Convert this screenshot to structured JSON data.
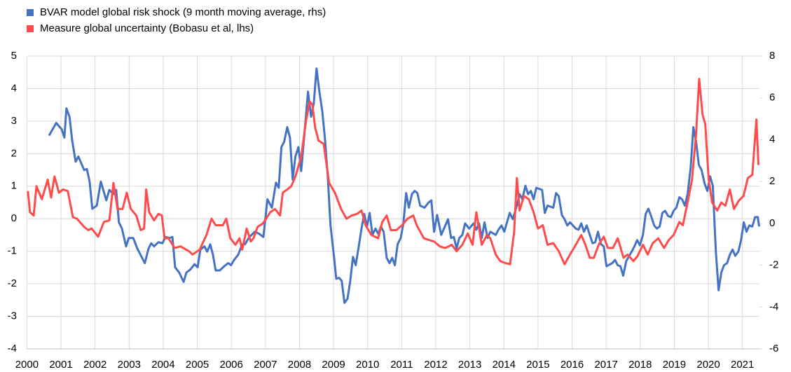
{
  "chart_data": {
    "type": "line",
    "legend": "top-left",
    "grid": true,
    "xlim": [
      2000,
      2021.5
    ],
    "xticks": [
      2000,
      2001,
      2002,
      2003,
      2004,
      2005,
      2006,
      2007,
      2008,
      2009,
      2010,
      2011,
      2012,
      2013,
      2014,
      2015,
      2016,
      2017,
      2018,
      2019,
      2020,
      2021
    ],
    "ylim": [
      -4,
      5
    ],
    "yticks": [
      -4,
      -3,
      -2,
      -1,
      0,
      1,
      2,
      3,
      4,
      5
    ],
    "y2lim": [
      -6,
      8
    ],
    "y2ticks": [
      -6,
      -4,
      -2,
      0,
      2,
      4,
      6,
      8
    ],
    "series": [
      {
        "name": "BVAR model global risk shock (9 month moving average, rhs)",
        "color": "#4472c4",
        "axis": "y2",
        "x": [
          2000.65,
          2000.86,
          2001.02,
          2001.1,
          2001.16,
          2001.25,
          2001.33,
          2001.43,
          2001.51,
          2001.68,
          2001.76,
          2001.84,
          2001.92,
          2002.05,
          2002.17,
          2002.33,
          2002.42,
          2002.54,
          2002.62,
          2002.7,
          2002.79,
          2002.91,
          2002.99,
          2003.12,
          2003.24,
          2003.46,
          2003.57,
          2003.65,
          2003.73,
          2003.86,
          2003.98,
          2004.06,
          2004.18,
          2004.27,
          2004.35,
          2004.47,
          2004.6,
          2004.68,
          2004.8,
          2004.92,
          2005.01,
          2005.09,
          2005.21,
          2005.29,
          2005.38,
          2005.46,
          2005.54,
          2005.66,
          2005.79,
          2005.91,
          2005.99,
          2006.08,
          2006.2,
          2006.32,
          2006.4,
          2006.53,
          2006.69,
          2006.82,
          2006.94,
          2007.06,
          2007.19,
          2007.31,
          2007.39,
          2007.47,
          2007.55,
          2007.64,
          2007.72,
          2007.8,
          2007.88,
          2007.97,
          2008.05,
          2008.17,
          2008.25,
          2008.34,
          2008.42,
          2008.5,
          2008.58,
          2008.67,
          2008.75,
          2008.83,
          2008.91,
          2009,
          2009.08,
          2009.16,
          2009.24,
          2009.32,
          2009.41,
          2009.49,
          2009.57,
          2009.65,
          2009.73,
          2009.82,
          2009.9,
          2009.98,
          2010.06,
          2010.14,
          2010.23,
          2010.31,
          2010.39,
          2010.47,
          2010.56,
          2010.64,
          2010.72,
          2010.8,
          2010.88,
          2010.97,
          2011.05,
          2011.13,
          2011.21,
          2011.3,
          2011.38,
          2011.46,
          2011.54,
          2011.67,
          2011.79,
          2011.87,
          2011.95,
          2012.04,
          2012.16,
          2012.28,
          2012.36,
          2012.45,
          2012.53,
          2012.61,
          2012.69,
          2012.78,
          2012.86,
          2012.98,
          2013.11,
          2013.19,
          2013.27,
          2013.35,
          2013.43,
          2013.52,
          2013.6,
          2013.76,
          2013.84,
          2013.93,
          2014.01,
          2014.09,
          2014.17,
          2014.26,
          2014.38,
          2014.46,
          2014.54,
          2014.63,
          2014.71,
          2014.79,
          2014.87,
          2014.95,
          2015.12,
          2015.2,
          2015.28,
          2015.45,
          2015.53,
          2015.61,
          2015.7,
          2015.78,
          2015.86,
          2015.94,
          2016.11,
          2016.19,
          2016.27,
          2016.35,
          2016.43,
          2016.52,
          2016.6,
          2016.68,
          2016.76,
          2016.85,
          2016.93,
          2017.01,
          2017.18,
          2017.26,
          2017.34,
          2017.42,
          2017.5,
          2017.59,
          2017.75,
          2017.83,
          2017.91,
          2017.99,
          2018.08,
          2018.16,
          2018.24,
          2018.32,
          2018.41,
          2018.49,
          2018.57,
          2018.65,
          2018.73,
          2018.82,
          2018.9,
          2018.98,
          2019.06,
          2019.15,
          2019.23,
          2019.31,
          2019.39,
          2019.48,
          2019.56,
          2019.64,
          2019.72,
          2019.8,
          2019.89,
          2019.97,
          2020.05,
          2020.13,
          2020.22,
          2020.3,
          2020.38,
          2020.46,
          2020.55,
          2020.63,
          2020.71,
          2020.79,
          2020.88,
          2020.96,
          2021.04,
          2021.12,
          2021.2,
          2021.29,
          2021.37,
          2021.45,
          2021.49
        ],
        "values": [
          4.2,
          4.8,
          4.5,
          4.1,
          5.5,
          5.1,
          3.95,
          2.95,
          3.2,
          2.55,
          2.6,
          2.0,
          0.7,
          0.85,
          2.0,
          1.1,
          1.6,
          1.4,
          1.6,
          0.05,
          -0.25,
          -1.1,
          -0.7,
          -0.7,
          -1.2,
          -1.9,
          -1.2,
          -0.95,
          -1.1,
          -0.9,
          -0.95,
          -0.65,
          -0.7,
          -0.65,
          -2.1,
          -2.35,
          -2.8,
          -2.35,
          -2.2,
          -1.95,
          -2.1,
          -1.25,
          -1.1,
          -1.35,
          -1.0,
          -1.5,
          -2.25,
          -2.25,
          -2.05,
          -1.9,
          -2.0,
          -1.75,
          -1.5,
          -1.0,
          -1.0,
          -0.65,
          -0.4,
          -0.5,
          -0.65,
          1.15,
          0.75,
          1.95,
          1.7,
          3.65,
          3.9,
          4.6,
          4.1,
          2.1,
          3.2,
          3.65,
          2.5,
          4.75,
          6.3,
          5.1,
          5.75,
          7.4,
          6.35,
          5.35,
          4.0,
          2.25,
          -0.1,
          -1.4,
          -2.65,
          -2.6,
          -2.75,
          -3.8,
          -3.6,
          -2.75,
          -1.6,
          -2.0,
          -1.2,
          -0.25,
          0.45,
          -0.15,
          0.5,
          -0.55,
          -0.25,
          -0.5,
          -0.15,
          -0.4,
          -1.65,
          -1.9,
          -1.65,
          -2.0,
          -1.0,
          -0.7,
          0.0,
          1.45,
          0.75,
          1.4,
          1.55,
          1.45,
          0.85,
          0.75,
          1.0,
          1.1,
          -0.4,
          0.4,
          -0.55,
          -0.1,
          0.2,
          -0.7,
          -0.65,
          -1.2,
          -0.7,
          -0.55,
          0.0,
          -0.25,
          0.0,
          -0.3,
          0.0,
          -0.7,
          0.05,
          -0.7,
          -0.4,
          -0.55,
          -0.3,
          -0.1,
          -0.4,
          0.05,
          0.5,
          0.2,
          0.85,
          1.4,
          1.15,
          1.8,
          1.4,
          1.55,
          1.15,
          1.7,
          1.6,
          0.5,
          0.85,
          0.75,
          1.45,
          1.3,
          0.4,
          0.2,
          -0.1,
          0.05,
          -0.25,
          -0.3,
          0.0,
          -0.4,
          -0.1,
          -0.55,
          -0.95,
          -0.9,
          -0.4,
          -1.0,
          -1.1,
          -2.05,
          -1.9,
          -1.75,
          -2.0,
          -2.05,
          -2.5,
          -1.8,
          -1.35,
          -1.1,
          -0.8,
          -1.05,
          -0.55,
          0.45,
          0.7,
          0.35,
          -0.1,
          -0.25,
          -0.15,
          0.5,
          0.6,
          0.35,
          0.3,
          0.6,
          0.75,
          1.25,
          1.15,
          0.85,
          1.4,
          2.65,
          4.6,
          3.9,
          2.8,
          2.55,
          1.9,
          1.55,
          2.25,
          1.8,
          -1.35,
          -3.2,
          -2.35,
          -2.0,
          -1.9,
          -1.5,
          -1.25,
          -1.55,
          -1.35,
          -0.8,
          0.05,
          -0.4,
          -0.1,
          -0.15,
          0.3,
          0.3,
          -0.15
        ]
      },
      {
        "name": "Measure global uncertainty (Bobasu et al, lhs)",
        "color": "#ff4b4b",
        "axis": "y",
        "x": [
          2000.03,
          2000.09,
          2000.2,
          2000.28,
          2000.44,
          2000.61,
          2000.71,
          2000.81,
          2000.94,
          2001.06,
          2001.2,
          2001.35,
          2001.47,
          2001.68,
          2001.8,
          2001.9,
          2002.09,
          2002.26,
          2002.42,
          2002.54,
          2002.66,
          2002.81,
          2002.93,
          2003.05,
          2003.21,
          2003.34,
          2003.44,
          2003.5,
          2003.59,
          2003.73,
          2003.86,
          2003.96,
          2004.04,
          2004.16,
          2004.33,
          2004.51,
          2004.76,
          2004.86,
          2005.07,
          2005.27,
          2005.42,
          2005.54,
          2005.75,
          2005.85,
          2005.97,
          2006.12,
          2006.24,
          2006.32,
          2006.45,
          2006.57,
          2006.65,
          2006.77,
          2006.92,
          2007.02,
          2007.14,
          2007.28,
          2007.43,
          2007.51,
          2007.64,
          2007.76,
          2007.88,
          2008.05,
          2008.19,
          2008.3,
          2008.38,
          2008.46,
          2008.56,
          2008.71,
          2008.87,
          2009.04,
          2009.22,
          2009.38,
          2009.53,
          2009.69,
          2009.82,
          2009.94,
          2010.11,
          2010.31,
          2010.43,
          2010.56,
          2010.68,
          2010.84,
          2011.01,
          2011.17,
          2011.34,
          2011.44,
          2011.65,
          2011.79,
          2011.95,
          2012.12,
          2012.28,
          2012.47,
          2012.61,
          2012.78,
          2012.94,
          2013.08,
          2013.19,
          2013.35,
          2013.5,
          2013.6,
          2013.76,
          2013.89,
          2014.01,
          2014.18,
          2014.3,
          2014.38,
          2014.46,
          2014.59,
          2014.73,
          2014.87,
          2015,
          2015.14,
          2015.28,
          2015.45,
          2015.61,
          2015.78,
          2015.94,
          2016.11,
          2016.27,
          2016.39,
          2016.52,
          2016.64,
          2016.78,
          2016.93,
          2017.05,
          2017.2,
          2017.34,
          2017.51,
          2017.63,
          2017.8,
          2017.92,
          2018.08,
          2018.22,
          2018.37,
          2018.53,
          2018.7,
          2018.84,
          2018.98,
          2019.15,
          2019.25,
          2019.4,
          2019.52,
          2019.64,
          2019.73,
          2019.83,
          2019.91,
          2020.01,
          2020.11,
          2020.26,
          2020.38,
          2020.5,
          2020.63,
          2020.75,
          2020.89,
          2021.03,
          2021.16,
          2021.29,
          2021.41,
          2021.47
        ],
        "values": [
          0.85,
          0.2,
          0.1,
          1.0,
          0.6,
          1.2,
          0.65,
          1.3,
          0.8,
          0.9,
          0.85,
          0.05,
          0.0,
          -0.25,
          -0.35,
          -0.3,
          -0.55,
          -0.1,
          -0.05,
          1.1,
          0.3,
          0.3,
          0.8,
          0.3,
          0.1,
          -0.35,
          -0.3,
          0.9,
          0.2,
          -0.05,
          0.15,
          0.1,
          -0.6,
          -0.6,
          -0.9,
          -0.85,
          -1.0,
          -1.1,
          -0.95,
          -0.5,
          0.0,
          -0.2,
          -0.2,
          0.0,
          -0.6,
          -0.8,
          -0.6,
          -0.95,
          -0.3,
          -0.7,
          -0.6,
          -0.25,
          -0.15,
          0.0,
          0.2,
          0.3,
          0.1,
          0.8,
          0.9,
          1.0,
          1.3,
          1.9,
          3.0,
          3.6,
          3.5,
          2.8,
          2.4,
          2.3,
          1.1,
          0.8,
          0.3,
          0.0,
          0.1,
          0.15,
          0.25,
          -0.2,
          -0.5,
          -0.6,
          -0.1,
          0.1,
          -0.35,
          -0.35,
          -0.2,
          0.0,
          0.1,
          -0.2,
          -0.6,
          -0.65,
          -0.7,
          -0.85,
          -0.9,
          -0.8,
          -1.0,
          -0.8,
          -0.45,
          -0.8,
          0.2,
          -0.8,
          -0.5,
          -0.6,
          -1.1,
          -1.3,
          -1.35,
          -1.4,
          -0.4,
          1.25,
          0.25,
          0.7,
          0.6,
          0.2,
          -0.3,
          -0.2,
          -0.8,
          -0.75,
          -1.0,
          -1.4,
          -1.1,
          -0.8,
          -0.5,
          -0.8,
          -1.2,
          -1.2,
          -0.8,
          -0.55,
          -0.9,
          -0.9,
          -0.6,
          -1.2,
          -1.1,
          -1.3,
          -1.15,
          -0.8,
          -1.1,
          -0.75,
          -0.6,
          -0.9,
          -0.65,
          -0.5,
          -0.1,
          -0.2,
          0.55,
          1.2,
          2.6,
          4.3,
          3.2,
          2.9,
          1.2,
          0.5,
          0.25,
          0.5,
          0.4,
          0.9,
          0.3,
          0.55,
          0.7,
          1.25,
          1.35,
          3.05,
          1.65
        ]
      }
    ]
  }
}
